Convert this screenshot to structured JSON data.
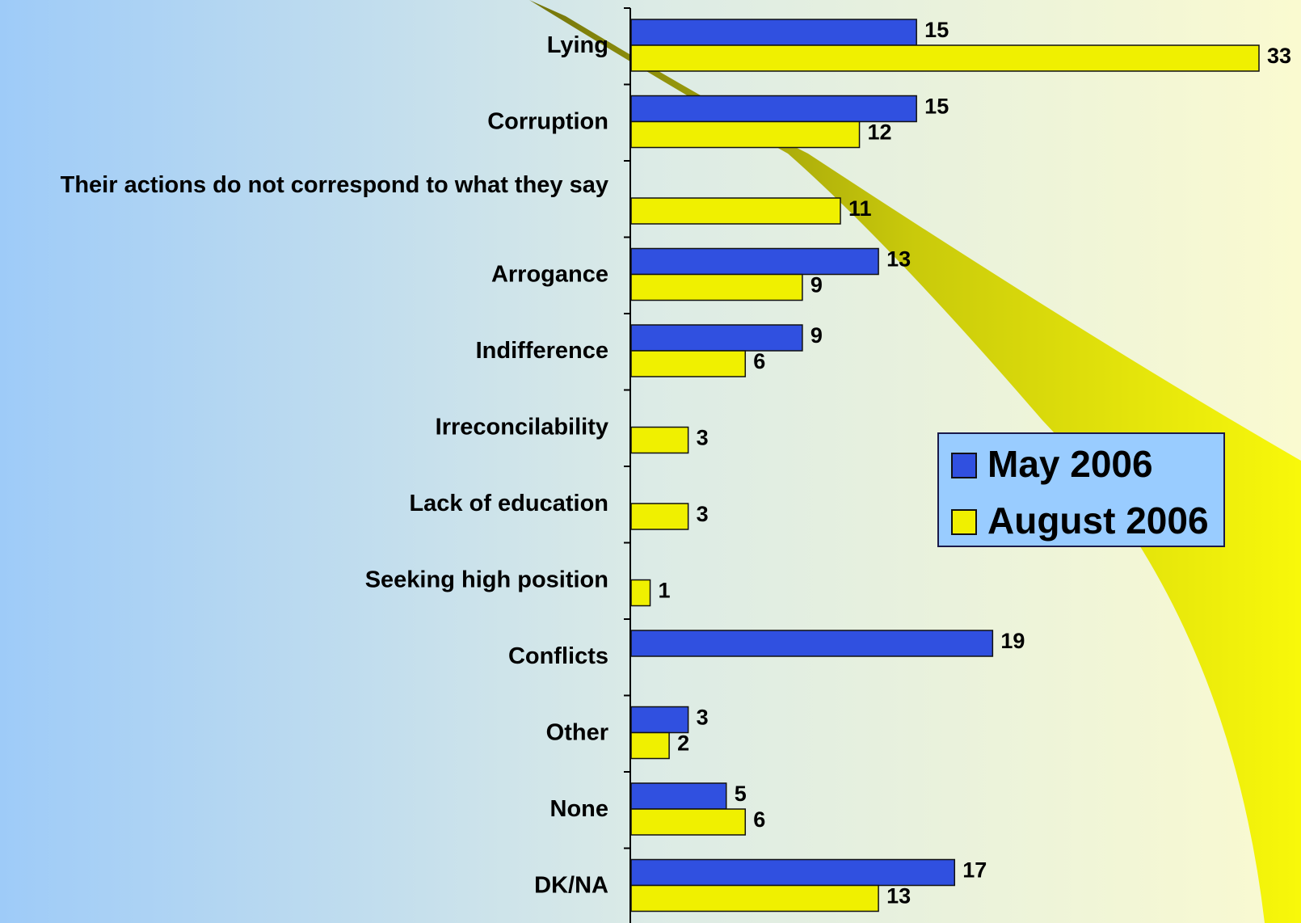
{
  "chart_data": {
    "type": "bar",
    "orientation": "horizontal",
    "categories": [
      "Lying",
      "Corruption",
      "Their actions do not correspond to what they say",
      "Arrogance",
      "Indifference",
      "Irreconcilability",
      "Lack of education",
      "Seeking high position",
      "Conflicts",
      "Other",
      "None",
      "DK/NA"
    ],
    "series": [
      {
        "name": "May 2006",
        "color": "#3050e0",
        "values": [
          15,
          15,
          null,
          13,
          9,
          null,
          null,
          null,
          19,
          3,
          5,
          17
        ]
      },
      {
        "name": "August 2006",
        "color": "#f0f000",
        "values": [
          33,
          12,
          11,
          9,
          6,
          3,
          3,
          1,
          null,
          2,
          6,
          13
        ]
      }
    ]
  }
}
